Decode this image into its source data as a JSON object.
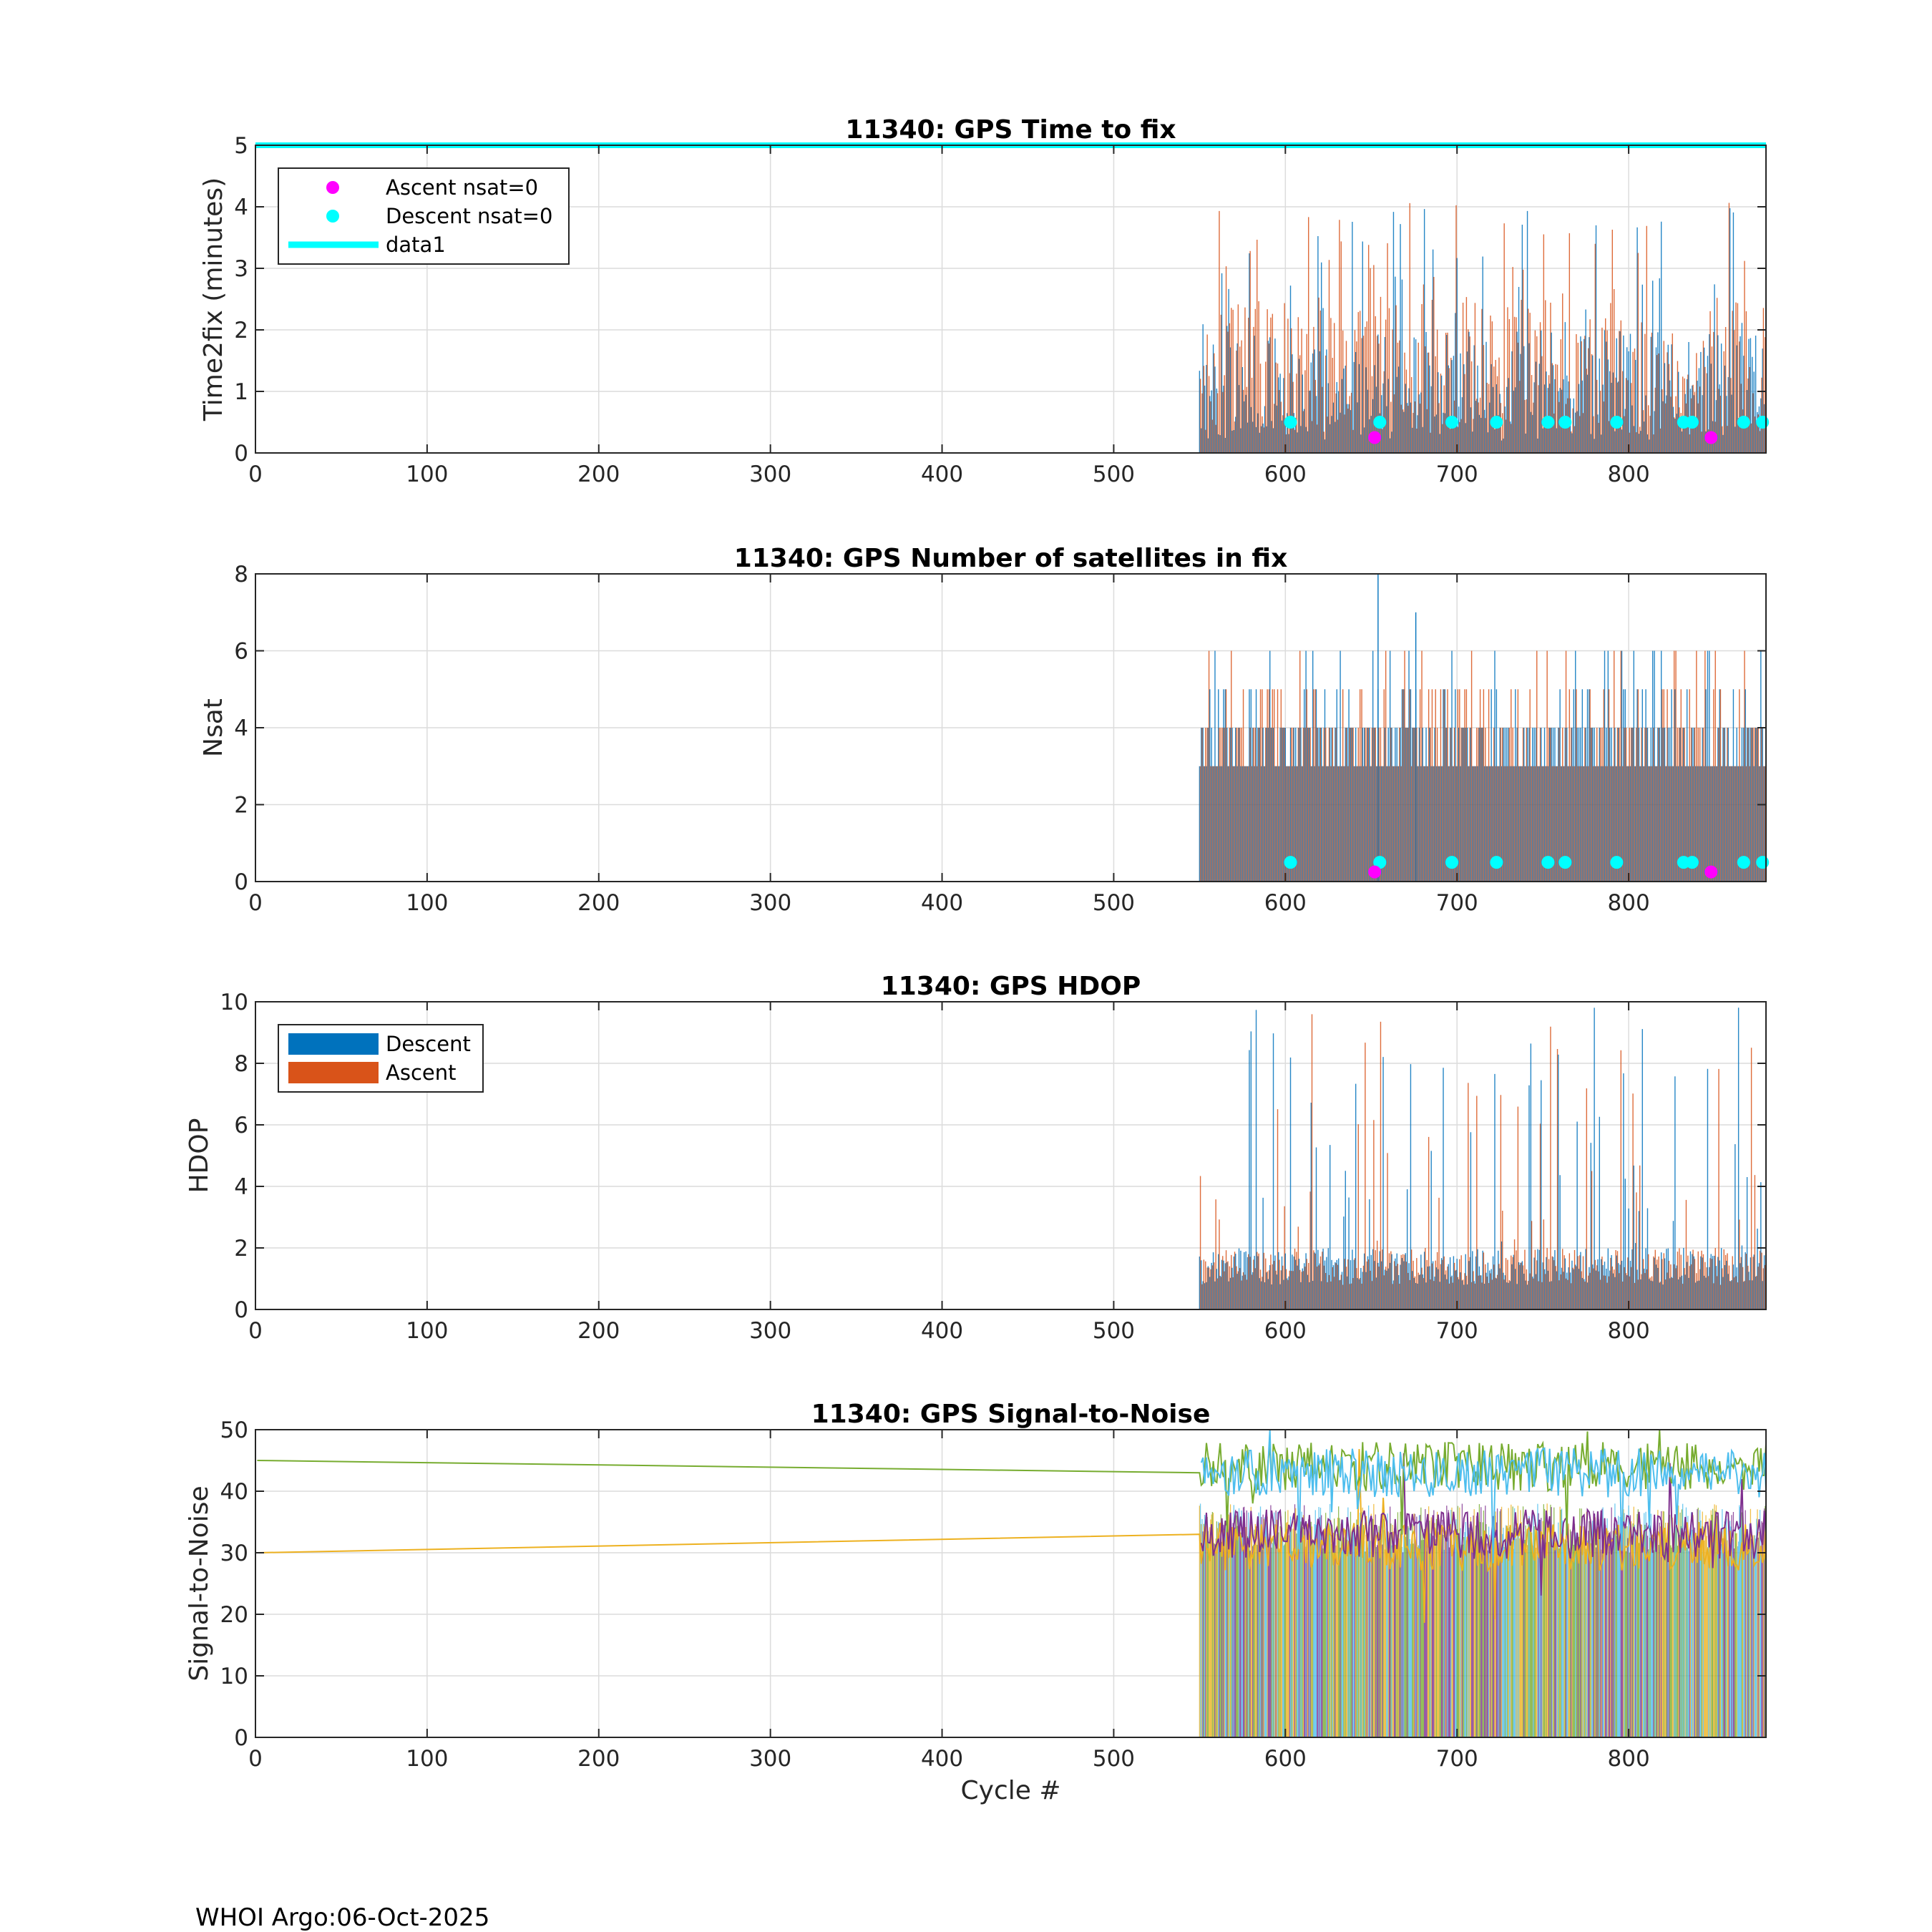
{
  "footer": "WHOI Argo:06-Oct-2025",
  "colors": {
    "descent": "#0072BD",
    "ascent": "#D95319",
    "cyan": "#00FFFF",
    "magenta": "#FF00FF",
    "snr": [
      "#EDB120",
      "#7E2F8E",
      "#77AC30",
      "#4DBEEE"
    ]
  },
  "chart_data": [
    {
      "type": "bar",
      "title": "11340: GPS Time to fix",
      "xlabel": "",
      "ylabel": "Time2fix (minutes)",
      "xlim": [
        0,
        880
      ],
      "ylim": [
        0,
        5
      ],
      "xticks": [
        0,
        100,
        200,
        300,
        400,
        500,
        600,
        700,
        800
      ],
      "yticks": [
        0,
        1,
        2,
        3,
        4,
        5
      ],
      "grid": true,
      "legend": {
        "position": "top-left",
        "entries": [
          {
            "label": "Ascent nsat=0",
            "marker": "magenta-dot"
          },
          {
            "label": "Descent nsat=0",
            "marker": "cyan-dot"
          },
          {
            "label": "data1",
            "marker": "cyan-line"
          }
        ]
      },
      "series": [
        {
          "name": "Descent",
          "x_range": [
            550,
            880
          ],
          "typical": [
            0.2,
            2.0
          ],
          "max": 4.0
        },
        {
          "name": "Ascent",
          "x_range": [
            550,
            880
          ],
          "typical": [
            0.3,
            2.5
          ],
          "max": 4.15
        },
        {
          "name": "data1",
          "type": "line",
          "y": 5
        }
      ],
      "ascent_nsat0": [
        [
          652,
          0.25
        ],
        [
          848,
          0.25
        ]
      ],
      "descent_nsat0": [
        [
          603,
          0.5
        ],
        [
          655,
          0.5
        ],
        [
          697,
          0.5
        ],
        [
          723,
          0.5
        ],
        [
          753,
          0.5
        ],
        [
          763,
          0.5
        ],
        [
          793,
          0.5
        ],
        [
          832,
          0.5
        ],
        [
          837,
          0.5
        ],
        [
          867,
          0.5
        ],
        [
          878,
          0.5
        ]
      ]
    },
    {
      "type": "bar",
      "title": "11340: GPS Number of satellites in fix",
      "xlabel": "",
      "ylabel": "Nsat",
      "xlim": [
        0,
        880
      ],
      "ylim": [
        0,
        8
      ],
      "xticks": [
        0,
        100,
        200,
        300,
        400,
        500,
        600,
        700,
        800
      ],
      "yticks": [
        0,
        2,
        4,
        6,
        8
      ],
      "grid": true,
      "series": [
        {
          "name": "Descent",
          "x_range": [
            550,
            880
          ],
          "levels": [
            3,
            4,
            5
          ],
          "max": 8
        },
        {
          "name": "Ascent",
          "x_range": [
            550,
            880
          ],
          "levels": [
            3,
            4,
            5
          ],
          "max": 6
        }
      ],
      "ascent_nsat0": [
        [
          652,
          0.25
        ],
        [
          848,
          0.25
        ]
      ],
      "descent_nsat0": [
        [
          603,
          0.5
        ],
        [
          655,
          0.5
        ],
        [
          697,
          0.5
        ],
        [
          723,
          0.5
        ],
        [
          753,
          0.5
        ],
        [
          763,
          0.5
        ],
        [
          793,
          0.5
        ],
        [
          832,
          0.5
        ],
        [
          837,
          0.5
        ],
        [
          867,
          0.5
        ],
        [
          878,
          0.5
        ]
      ]
    },
    {
      "type": "bar",
      "title": "11340: GPS HDOP",
      "xlabel": "",
      "ylabel": "HDOP",
      "xlim": [
        0,
        880
      ],
      "ylim": [
        0,
        10
      ],
      "xticks": [
        0,
        100,
        200,
        300,
        400,
        500,
        600,
        700,
        800
      ],
      "yticks": [
        0,
        2,
        4,
        6,
        8,
        10
      ],
      "grid": true,
      "legend": {
        "position": "top-left",
        "entries": [
          {
            "label": "Descent",
            "marker": "descent-patch"
          },
          {
            "label": "Ascent",
            "marker": "ascent-patch"
          }
        ]
      },
      "series": [
        {
          "name": "Descent",
          "x_range": [
            550,
            880
          ],
          "typical": [
            0.8,
            2.0
          ],
          "max": 10
        },
        {
          "name": "Ascent",
          "x_range": [
            550,
            880
          ],
          "typical": [
            0.8,
            2.0
          ],
          "max": 10
        }
      ]
    },
    {
      "type": "line",
      "title": "11340: GPS Signal-to-Noise",
      "xlabel": "Cycle #",
      "ylabel": "Signal-to-Noise",
      "xlim": [
        0,
        880
      ],
      "ylim": [
        0,
        50
      ],
      "xticks": [
        0,
        100,
        200,
        300,
        400,
        500,
        600,
        700,
        800
      ],
      "yticks": [
        0,
        10,
        20,
        30,
        40,
        50
      ],
      "grid": true,
      "series": [
        {
          "name": "yellow",
          "x": [
            1,
            550
          ],
          "y": [
            30,
            33
          ],
          "noisy_mean": 31
        },
        {
          "name": "purple",
          "x": [
            550,
            880
          ],
          "noisy_mean": 33
        },
        {
          "name": "green",
          "x": [
            1,
            550
          ],
          "y": [
            45,
            43
          ],
          "noisy_mean": 44
        },
        {
          "name": "lightblue",
          "x": [
            550,
            880
          ],
          "noisy_mean": 43
        }
      ]
    }
  ]
}
